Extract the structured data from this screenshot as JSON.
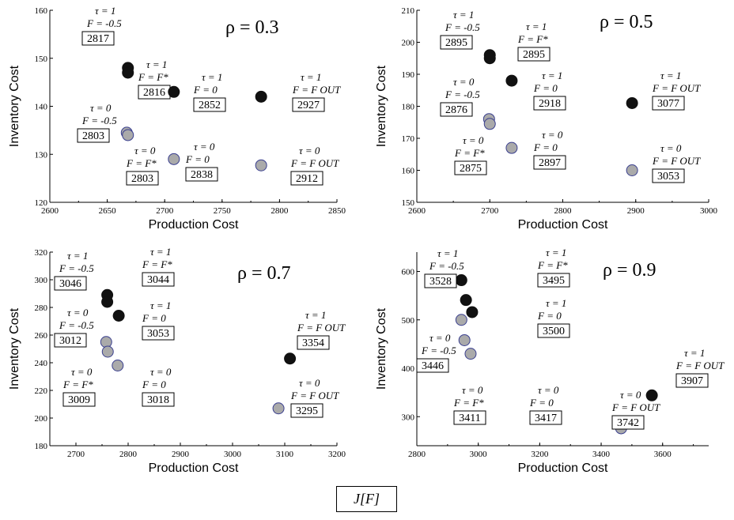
{
  "legend": {
    "label": "J[F]"
  },
  "colors": {
    "tau1": "#111111",
    "tau0": "#aaaaaa",
    "tau0_stroke": "#3a3f8f"
  },
  "chart_data": [
    {
      "type": "scatter",
      "title": "ρ = 0.3",
      "xlabel": "Production Cost",
      "ylabel": "Inventory Cost",
      "xlim": [
        2600,
        2850
      ],
      "ylim": [
        120,
        160
      ],
      "xticks": [
        "2600",
        "2650",
        "2700",
        "2750",
        "2800",
        "2850"
      ],
      "yticks": [
        "120",
        "130",
        "140",
        "150",
        "160"
      ],
      "points": [
        {
          "x": 2668,
          "y": 148,
          "tau": 1,
          "tau_label": "τ = 1",
          "f_label": "F = -0.5",
          "j": "2817"
        },
        {
          "x": 2668,
          "y": 147,
          "tau": 1,
          "tau_label": "τ = 1",
          "f_label": "F = F*",
          "j": "2816"
        },
        {
          "x": 2708,
          "y": 143,
          "tau": 1,
          "tau_label": "τ = 1",
          "f_label": "F = 0",
          "j": "2852"
        },
        {
          "x": 2784,
          "y": 142,
          "tau": 1,
          "tau_label": "τ = 1",
          "f_label": "F = Fout",
          "j": "2927"
        },
        {
          "x": 2667,
          "y": 134.5,
          "tau": 0,
          "tau_label": "τ = 0",
          "f_label": "F = -0.5",
          "j": "2803"
        },
        {
          "x": 2668,
          "y": 134,
          "tau": 0,
          "tau_label": "τ = 0",
          "f_label": "F = F*",
          "j": "2803"
        },
        {
          "x": 2708,
          "y": 129,
          "tau": 0,
          "tau_label": "τ = 0",
          "f_label": "F = 0",
          "j": "2838"
        },
        {
          "x": 2784,
          "y": 127.7,
          "tau": 0,
          "tau_label": "τ = 0",
          "f_label": "F = Fout",
          "j": "2912"
        }
      ]
    },
    {
      "type": "scatter",
      "title": "ρ = 0.5",
      "xlabel": "Production Cost",
      "ylabel": "Inventory Cost",
      "xlim": [
        2600,
        3000
      ],
      "ylim": [
        150,
        210
      ],
      "xticks": [
        "2600",
        "2700",
        "2800",
        "2900",
        "3000"
      ],
      "yticks": [
        "150",
        "160",
        "170",
        "180",
        "190",
        "200",
        "210"
      ],
      "points": [
        {
          "x": 2700,
          "y": 196,
          "tau": 1,
          "tau_label": "τ = 1",
          "f_label": "F = -0.5",
          "j": "2895"
        },
        {
          "x": 2700,
          "y": 195,
          "tau": 1,
          "tau_label": "τ = 1",
          "f_label": "F = F*",
          "j": "2895"
        },
        {
          "x": 2730,
          "y": 188,
          "tau": 1,
          "tau_label": "τ = 1",
          "f_label": "F = 0",
          "j": "2918"
        },
        {
          "x": 2895,
          "y": 181,
          "tau": 1,
          "tau_label": "τ = 1",
          "f_label": "F = Fout",
          "j": "3077"
        },
        {
          "x": 2699,
          "y": 176,
          "tau": 0,
          "tau_label": "τ = 0",
          "f_label": "F = -0.5",
          "j": "2876"
        },
        {
          "x": 2700,
          "y": 174.5,
          "tau": 0,
          "tau_label": "τ = 0",
          "f_label": "F = F*",
          "j": "2875"
        },
        {
          "x": 2730,
          "y": 167,
          "tau": 0,
          "tau_label": "τ = 0",
          "f_label": "F = 0",
          "j": "2897"
        },
        {
          "x": 2895,
          "y": 160,
          "tau": 0,
          "tau_label": "τ = 0",
          "f_label": "F = Fout",
          "j": "3053"
        }
      ]
    },
    {
      "type": "scatter",
      "title": "ρ = 0.7",
      "xlabel": "Production Cost",
      "ylabel": "Inventory Cost",
      "xlim": [
        2650,
        3200
      ],
      "ylim": [
        180,
        320
      ],
      "xticks": [
        "2700",
        "2800",
        "2900",
        "3000",
        "3100",
        "3200"
      ],
      "yticks": [
        "180",
        "200",
        "220",
        "240",
        "260",
        "280",
        "300",
        "320"
      ],
      "points": [
        {
          "x": 2760,
          "y": 289,
          "tau": 1,
          "tau_label": "τ = 1",
          "f_label": "F = -0.5",
          "j": "3046"
        },
        {
          "x": 2760,
          "y": 284,
          "tau": 1,
          "tau_label": "τ = 1",
          "f_label": "F = F*",
          "j": "3044"
        },
        {
          "x": 2782,
          "y": 274,
          "tau": 1,
          "tau_label": "τ = 1",
          "f_label": "F = 0",
          "j": "3053"
        },
        {
          "x": 3110,
          "y": 243,
          "tau": 1,
          "tau_label": "τ = 1",
          "f_label": "F = Fout",
          "j": "3354"
        },
        {
          "x": 2758,
          "y": 255,
          "tau": 0,
          "tau_label": "τ = 0",
          "f_label": "F = -0.5",
          "j": "3012"
        },
        {
          "x": 2761,
          "y": 248,
          "tau": 0,
          "tau_label": "τ = 0",
          "f_label": "F = F*",
          "j": "3009"
        },
        {
          "x": 2780,
          "y": 238,
          "tau": 0,
          "tau_label": "τ = 0",
          "f_label": "F = 0",
          "j": "3018"
        },
        {
          "x": 3088,
          "y": 207,
          "tau": 0,
          "tau_label": "τ = 0",
          "f_label": "F = Fout",
          "j": "3295"
        }
      ]
    },
    {
      "type": "scatter",
      "title": "ρ = 0.9",
      "xlabel": "Production Cost",
      "ylabel": "Inventory Cost",
      "xlim": [
        2800,
        3750
      ],
      "ylim": [
        240,
        640
      ],
      "xticks": [
        "2800",
        "3000",
        "3200",
        "3400",
        "3600"
      ],
      "yticks": [
        "300",
        "400",
        "500",
        "600"
      ],
      "points": [
        {
          "x": 2945,
          "y": 582,
          "tau": 1,
          "tau_label": "τ = 1",
          "f_label": "F = -0.5",
          "j": "3528"
        },
        {
          "x": 2960,
          "y": 541,
          "tau": 1,
          "tau_label": "τ = 1",
          "f_label": "F = F*",
          "j": "3495"
        },
        {
          "x": 2980,
          "y": 516,
          "tau": 1,
          "tau_label": "τ = 1",
          "f_label": "F = 0",
          "j": "3500"
        },
        {
          "x": 3565,
          "y": 344,
          "tau": 1,
          "tau_label": "τ = 1",
          "f_label": "F = Fout",
          "j": "3907"
        },
        {
          "x": 2945,
          "y": 500,
          "tau": 0,
          "tau_label": "τ = 0",
          "f_label": "F = -0.5",
          "j": "3446"
        },
        {
          "x": 2955,
          "y": 458,
          "tau": 0,
          "tau_label": "τ = 0",
          "f_label": "F = F*",
          "j": "3411"
        },
        {
          "x": 2975,
          "y": 430,
          "tau": 0,
          "tau_label": "τ = 0",
          "f_label": "F = 0",
          "j": "3417"
        },
        {
          "x": 3465,
          "y": 276,
          "tau": 0,
          "tau_label": "τ = 0",
          "f_label": "F = Fout",
          "j": "3742"
        }
      ]
    }
  ]
}
